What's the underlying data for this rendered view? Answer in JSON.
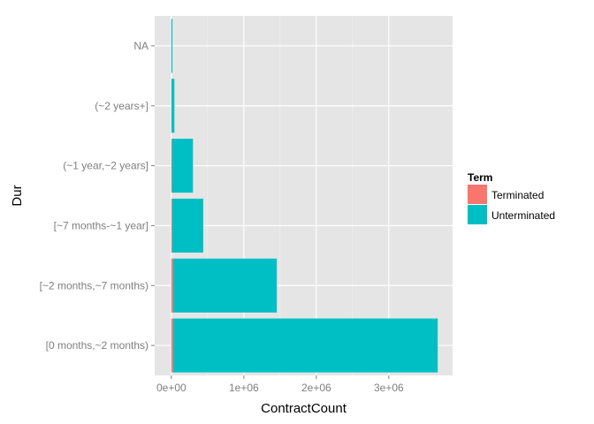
{
  "chart_data": {
    "type": "bar",
    "orientation": "horizontal",
    "stacked": true,
    "categories": [
      "[0 months,~2 months)",
      "[~2 months,~7 months)",
      "[~7 months-~1 year]",
      "(~1 year,~2 years]",
      "(~2 years+]",
      "NA"
    ],
    "series": [
      {
        "name": "Terminated",
        "color": "#F8766D",
        "values": [
          25000,
          25000,
          10000,
          8000,
          2000,
          0
        ]
      },
      {
        "name": "Unterminated",
        "color": "#00BFC4",
        "values": [
          3650000,
          1430000,
          430000,
          290000,
          40000,
          15000
        ]
      }
    ],
    "xlabel": "ContractCount",
    "ylabel": "Dur",
    "xlim": [
      -230000,
      3880000
    ],
    "xticks": [
      {
        "value": 0,
        "label": "0e+00"
      },
      {
        "value": 1000000,
        "label": "1e+06"
      },
      {
        "value": 2000000,
        "label": "2e+06"
      },
      {
        "value": 3000000,
        "label": "3e+06"
      }
    ],
    "legend": {
      "title": "Term",
      "position": "right"
    },
    "grid": true,
    "panel_color": "#E5E5E5"
  }
}
